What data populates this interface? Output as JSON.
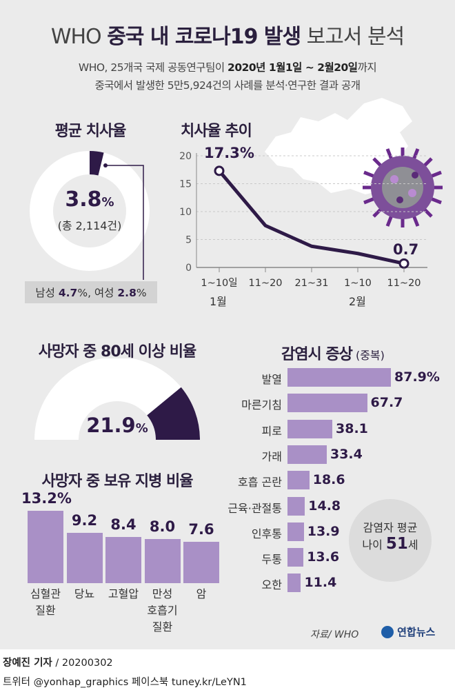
{
  "header": {
    "title_prefix": "WHO",
    "title_bold": "중국 내 코로나19 발생",
    "title_suffix": "보고서 분석",
    "sub1_a": "WHO, 25개국 국제 공동연구팀이",
    "sub1_b": "2020년 1월1일 ~ 2월20일",
    "sub1_c": "까지",
    "sub2": "중국에서 발생한 5만5,924건의 사례를 분석·연구한 결과 공개"
  },
  "fatality": {
    "title": "평균 치사율",
    "value": "3.8",
    "unit": "%",
    "total": "(총 2,114건)",
    "share": 0.038,
    "male_label": "남성",
    "male_value": "4.7",
    "female_label": "여성",
    "female_value": "2.8",
    "pct": "%"
  },
  "trend": {
    "title": "치사율 추이",
    "first_label": "17.3%",
    "last_label": "0.7",
    "month_labels": [
      "1월",
      "2월"
    ]
  },
  "elderly": {
    "title": "사망자 중 80세 이상 비율",
    "value": "21.9",
    "unit": "%",
    "share": 0.219
  },
  "comorbidity_title": "사망자 중 보유 지병 비율",
  "symptoms": {
    "title": "감염시 증상",
    "title_note": "(중복)"
  },
  "average_age": {
    "line1": "감염자 평균",
    "line2_a": "나이",
    "line2_b": "51",
    "line2_c": "세"
  },
  "source": "자료/ WHO",
  "logo": "연합뉴스",
  "footer": {
    "reporter": "장예진 기자",
    "date": " / 20200302",
    "social": "트위터 @yonhap_graphics  페이스북 tuney.kr/LeYN1"
  },
  "colors": {
    "dark_purple": "#2e1a47",
    "bar_purple": "#a990c6",
    "panel_gray": "#ebebeb"
  },
  "chart_data": [
    {
      "type": "line",
      "title": "치사율 추이",
      "categories": [
        "1~10일",
        "11~20",
        "21~31",
        "1~10",
        "11~20"
      ],
      "values": [
        17.3,
        7.5,
        3.8,
        2.5,
        0.7
      ],
      "ylim": [
        0,
        20
      ],
      "yticks": [
        0,
        5,
        10,
        15,
        20
      ],
      "grid": true
    },
    {
      "type": "bar",
      "orientation": "horizontal",
      "title": "감염시 증상",
      "categories": [
        "발열",
        "마른기침",
        "피로",
        "가래",
        "호흡 곤란",
        "근육·관절통",
        "인후통",
        "두통",
        "오한"
      ],
      "values": [
        87.9,
        67.7,
        38.1,
        33.4,
        18.6,
        14.8,
        13.9,
        13.6,
        11.4
      ],
      "labels": [
        "87.9%",
        "67.7",
        "38.1",
        "33.4",
        "18.6",
        "14.8",
        "13.9",
        "13.6",
        "11.4"
      ]
    },
    {
      "type": "bar",
      "title": "사망자 중 보유 지병 비율",
      "categories": [
        [
          "심혈관",
          "질환"
        ],
        [
          "당뇨"
        ],
        [
          "고혈압"
        ],
        [
          "만성",
          "호흡기",
          "질환"
        ],
        [
          "암"
        ]
      ],
      "values": [
        13.2,
        9.2,
        8.4,
        8.0,
        7.6
      ],
      "labels": [
        "13.2%",
        "9.2",
        "8.4",
        "8.0",
        "7.6"
      ]
    }
  ]
}
